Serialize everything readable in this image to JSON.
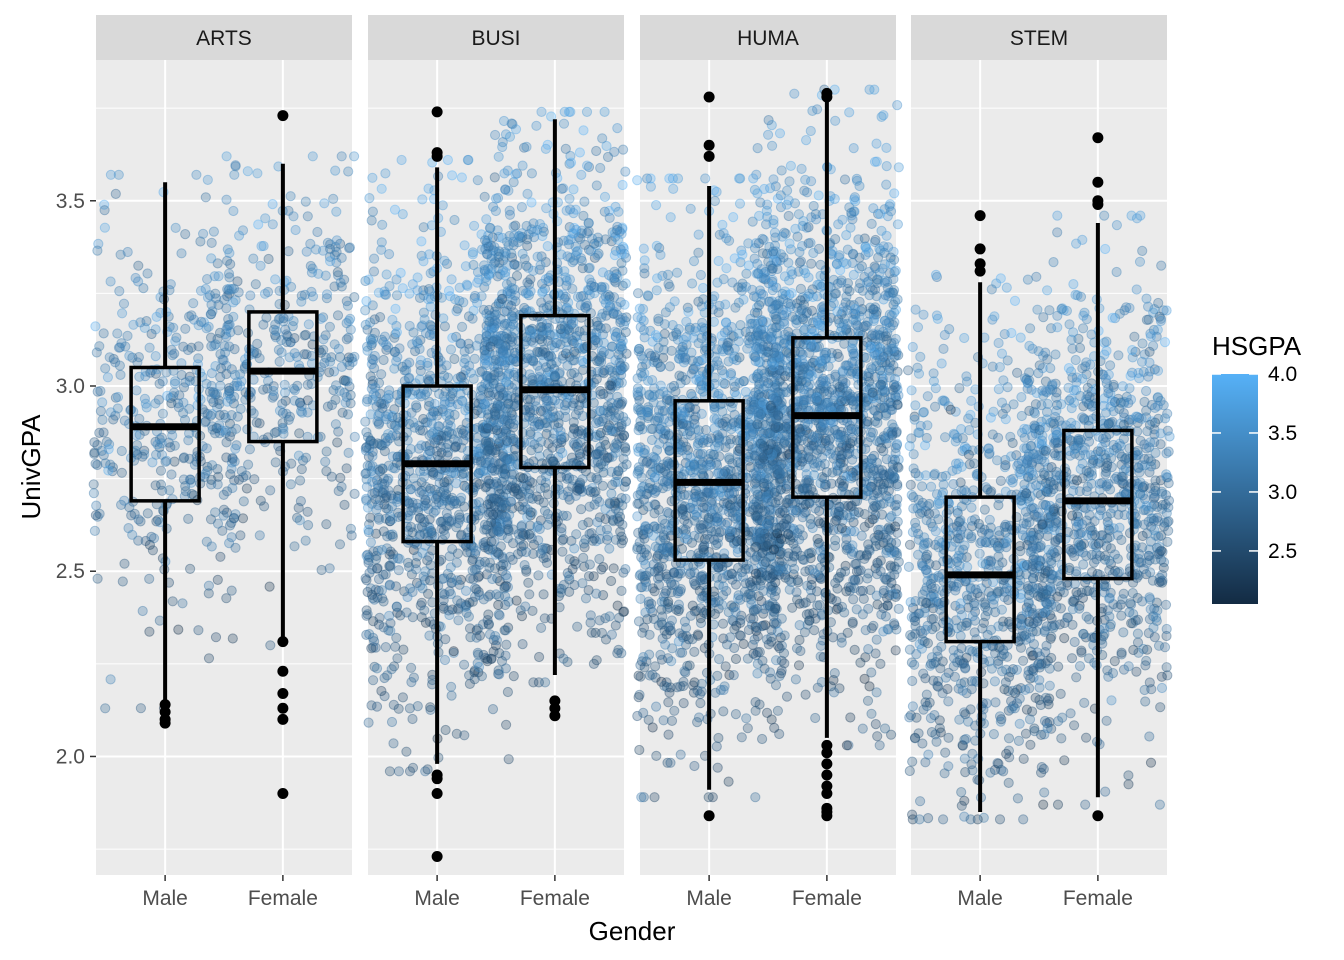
{
  "chart_data": {
    "type": "boxplot",
    "facet_by": "field",
    "xlabel": "Gender",
    "ylabel": "UnivGPA",
    "ylim": [
      1.68,
      3.88
    ],
    "y_ticks": [
      2.0,
      2.5,
      3.0,
      3.5
    ],
    "y_tick_labels": [
      "2.0",
      "2.5",
      "3.0",
      "3.5"
    ],
    "categories": [
      "Male",
      "Female"
    ],
    "points": "jittered raw observations, alpha ~0.3, colored by HSGPA",
    "color_scale": {
      "title": "HSGPA",
      "low": "#132B43",
      "high": "#56B1F7",
      "range": [
        2.05,
        4.0
      ],
      "ticks": [
        2.5,
        3.0,
        3.5,
        4.0
      ],
      "tick_labels": [
        "2.5",
        "3.0",
        "3.5",
        "4.0"
      ]
    },
    "facets": [
      {
        "name": "ARTS",
        "groups": [
          {
            "gender": "Male",
            "n_points": 380,
            "q1": 2.69,
            "median": 2.89,
            "q3": 3.05,
            "whisker_low": 2.15,
            "whisker_high": 3.55,
            "outliers": [
              2.14,
              2.12,
              2.1,
              2.09
            ]
          },
          {
            "gender": "Female",
            "n_points": 400,
            "q1": 2.85,
            "median": 3.04,
            "q3": 3.2,
            "whisker_low": 2.32,
            "whisker_high": 3.6,
            "outliers": [
              3.73,
              2.31,
              2.23,
              2.17,
              2.13,
              2.1,
              1.9
            ]
          }
        ]
      },
      {
        "name": "BUSI",
        "groups": [
          {
            "gender": "Male",
            "n_points": 1200,
            "q1": 2.58,
            "median": 2.79,
            "q3": 3.0,
            "whisker_low": 1.98,
            "whisker_high": 3.59,
            "outliers": [
              3.74,
              3.63,
              3.62,
              1.95,
              1.94,
              1.9,
              1.73
            ]
          },
          {
            "gender": "Female",
            "n_points": 1400,
            "q1": 2.78,
            "median": 2.99,
            "q3": 3.19,
            "whisker_low": 2.22,
            "whisker_high": 3.72,
            "outliers": [
              2.15,
              2.13,
              2.11
            ]
          }
        ]
      },
      {
        "name": "HUMA",
        "groups": [
          {
            "gender": "Male",
            "n_points": 1500,
            "q1": 2.53,
            "median": 2.74,
            "q3": 2.96,
            "whisker_low": 1.91,
            "whisker_high": 3.54,
            "outliers": [
              3.78,
              3.65,
              3.62,
              1.84
            ]
          },
          {
            "gender": "Female",
            "n_points": 1800,
            "q1": 2.7,
            "median": 2.92,
            "q3": 3.13,
            "whisker_low": 2.05,
            "whisker_high": 3.78,
            "outliers": [
              3.79,
              3.78,
              2.03,
              2.01,
              1.98,
              1.95,
              1.92,
              1.9,
              1.86,
              1.85,
              1.84
            ]
          }
        ]
      },
      {
        "name": "STEM",
        "groups": [
          {
            "gender": "Male",
            "n_points": 850,
            "q1": 2.31,
            "median": 2.49,
            "q3": 2.7,
            "whisker_low": 1.85,
            "whisker_high": 3.28,
            "outliers": [
              3.46,
              3.37,
              3.33,
              3.31
            ]
          },
          {
            "gender": "Female",
            "n_points": 1000,
            "q1": 2.48,
            "median": 2.69,
            "q3": 2.88,
            "whisker_low": 1.89,
            "whisker_high": 3.44,
            "outliers": [
              3.67,
              3.55,
              3.5,
              3.49,
              1.84
            ]
          }
        ]
      }
    ]
  }
}
